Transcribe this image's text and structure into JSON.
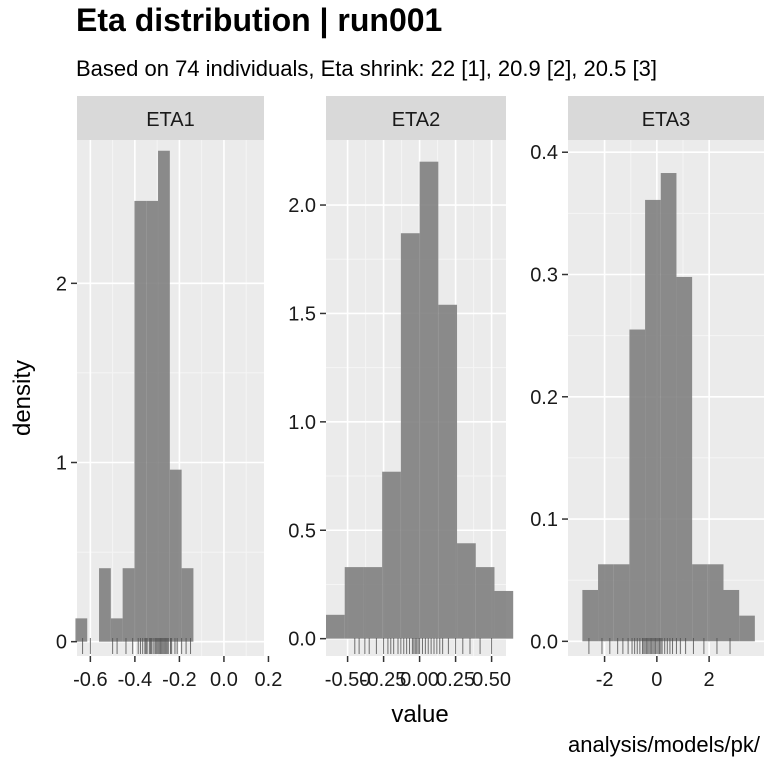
{
  "title": "Eta distribution | run001",
  "subtitle": "Based on 74 individuals, Eta shrink: 22 [1], 20.9 [2], 20.5 [3]",
  "caption": "analysis/models/pk/",
  "chart_data": {
    "type": "histogram",
    "xlabel": "value",
    "ylabel": "density",
    "grid": true,
    "bar_color": "#808080",
    "panel_bg": "#ebebeb",
    "strip_bg": "#d9d9d9",
    "panels": [
      {
        "name": "ETA1",
        "xlim": [
          -0.66,
          0.18
        ],
        "ylim": [
          -0.08,
          2.8
        ],
        "xticks": [
          -0.6,
          -0.4,
          -0.2,
          0.0,
          0.2
        ],
        "xtick_labels": [
          "-0.6",
          "-0.4",
          "-0.2",
          "0.0",
          "0.2"
        ],
        "yticks": [
          0,
          1,
          2
        ],
        "ytick_labels": [
          "0",
          "1",
          "2"
        ],
        "bins": [
          {
            "x0": -0.667,
            "x1": -0.614,
            "density": 0.13
          },
          {
            "x0": -0.614,
            "x1": -0.561,
            "density": 0
          },
          {
            "x0": -0.561,
            "x1": -0.508,
            "density": 0.41
          },
          {
            "x0": -0.508,
            "x1": -0.455,
            "density": 0.13
          },
          {
            "x0": -0.455,
            "x1": -0.402,
            "density": 0.41
          },
          {
            "x0": -0.402,
            "x1": -0.349,
            "density": 2.46
          },
          {
            "x0": -0.349,
            "x1": -0.296,
            "density": 2.46
          },
          {
            "x0": -0.296,
            "x1": -0.243,
            "density": 2.74
          },
          {
            "x0": -0.243,
            "x1": -0.19,
            "density": 0.96
          },
          {
            "x0": -0.19,
            "x1": -0.137,
            "density": 0.41
          }
        ],
        "rug": [
          -0.635,
          -0.6,
          -0.5,
          -0.48,
          -0.44,
          -0.41,
          -0.385,
          -0.375,
          -0.365,
          -0.355,
          -0.35,
          -0.345,
          -0.335,
          -0.33,
          -0.325,
          -0.318,
          -0.31,
          -0.305,
          -0.3,
          -0.295,
          -0.29,
          -0.285,
          -0.28,
          -0.275,
          -0.27,
          -0.265,
          -0.26,
          -0.255,
          -0.25,
          -0.24,
          -0.235,
          -0.22,
          -0.21,
          -0.19,
          -0.17,
          -0.15
        ]
      },
      {
        "name": "ETA2",
        "xlim": [
          -0.65,
          0.6
        ],
        "ylim": [
          -0.08,
          2.3
        ],
        "xticks": [
          -0.5,
          -0.25,
          0.0,
          0.25,
          0.5
        ],
        "xtick_labels": [
          "-0.50",
          "-0.25",
          "0.00",
          "0.25",
          "0.50"
        ],
        "yticks": [
          0.0,
          0.5,
          1.0,
          1.5,
          2.0
        ],
        "ytick_labels": [
          "0.0",
          "0.5",
          "1.0",
          "1.5",
          "2.0"
        ],
        "bins": [
          {
            "x0": -0.65,
            "x1": -0.52,
            "density": 0.11
          },
          {
            "x0": -0.52,
            "x1": -0.39,
            "density": 0.33
          },
          {
            "x0": -0.39,
            "x1": -0.26,
            "density": 0.33
          },
          {
            "x0": -0.26,
            "x1": -0.13,
            "density": 0.77
          },
          {
            "x0": -0.13,
            "x1": 0.0,
            "density": 1.87
          },
          {
            "x0": 0.0,
            "x1": 0.13,
            "density": 2.2
          },
          {
            "x0": 0.13,
            "x1": 0.26,
            "density": 1.54
          },
          {
            "x0": 0.26,
            "x1": 0.39,
            "density": 0.44
          },
          {
            "x0": 0.39,
            "x1": 0.52,
            "density": 0.33
          },
          {
            "x0": 0.52,
            "x1": 0.65,
            "density": 0.22
          }
        ],
        "rug": [
          -0.45,
          -0.42,
          -0.38,
          -0.35,
          -0.3,
          -0.25,
          -0.22,
          -0.2,
          -0.18,
          -0.15,
          -0.13,
          -0.11,
          -0.09,
          -0.07,
          -0.05,
          -0.04,
          -0.03,
          -0.02,
          -0.01,
          0.0,
          0.02,
          0.04,
          0.06,
          0.08,
          0.1,
          0.12,
          0.14,
          0.16,
          0.2,
          0.25,
          0.3,
          0.35,
          0.42,
          0.5
        ]
      },
      {
        "name": "ETA3",
        "xlim": [
          -3.4,
          4.1
        ],
        "ylim": [
          -0.012,
          0.41
        ],
        "xticks": [
          -2,
          0,
          2
        ],
        "xtick_labels": [
          "-2",
          "0",
          "2"
        ],
        "yticks": [
          0.0,
          0.1,
          0.2,
          0.3,
          0.4
        ],
        "ytick_labels": [
          "0.0",
          "0.1",
          "0.2",
          "0.3",
          "0.4"
        ],
        "bins": [
          {
            "x0": -2.85,
            "x1": -2.25,
            "density": 0.042
          },
          {
            "x0": -2.25,
            "x1": -1.65,
            "density": 0.063
          },
          {
            "x0": -1.65,
            "x1": -1.05,
            "density": 0.063
          },
          {
            "x0": -1.05,
            "x1": -0.45,
            "density": 0.255
          },
          {
            "x0": -0.45,
            "x1": 0.15,
            "density": 0.361
          },
          {
            "x0": 0.15,
            "x1": 0.75,
            "density": 0.383
          },
          {
            "x0": 0.75,
            "x1": 1.35,
            "density": 0.298
          },
          {
            "x0": 1.35,
            "x1": 1.95,
            "density": 0.063
          },
          {
            "x0": 1.95,
            "x1": 2.55,
            "density": 0.063
          },
          {
            "x0": 2.55,
            "x1": 3.15,
            "density": 0.042
          },
          {
            "x0": 3.15,
            "x1": 3.75,
            "density": 0.021
          }
        ],
        "rug": [
          -2.6,
          -2.1,
          -1.8,
          -1.5,
          -1.3,
          -1.1,
          -0.95,
          -0.85,
          -0.75,
          -0.65,
          -0.55,
          -0.5,
          -0.45,
          -0.4,
          -0.35,
          -0.3,
          -0.25,
          -0.2,
          -0.15,
          -0.1,
          -0.05,
          0.0,
          0.05,
          0.1,
          0.15,
          0.2,
          0.3,
          0.4,
          0.5,
          0.6,
          0.75,
          0.9,
          1.1,
          1.4,
          1.8,
          2.3,
          2.8
        ]
      }
    ]
  }
}
